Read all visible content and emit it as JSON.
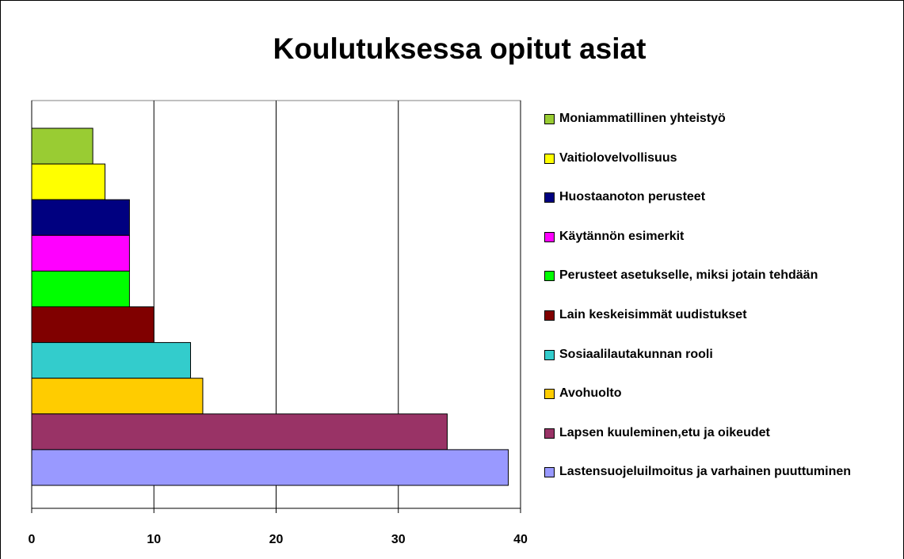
{
  "chart_data": {
    "type": "bar",
    "orientation": "horizontal",
    "title": "Koulutuksessa opitut asiat",
    "series": [
      {
        "name": "Moniammatillinen yhteistyö",
        "color": "#99cc33",
        "values": [
          5
        ]
      },
      {
        "name": "Vaitiolovelvollisuus",
        "color": "#ffff00",
        "values": [
          6
        ]
      },
      {
        "name": "Huostaanoton perusteet",
        "color": "#000080",
        "values": [
          8
        ]
      },
      {
        "name": "Käytännön esimerkit",
        "color": "#ff00ff",
        "values": [
          8
        ]
      },
      {
        "name": "Perusteet asetukselle, miksi jotain tehdään",
        "color": "#00ff00",
        "values": [
          8
        ]
      },
      {
        "name": "Lain keskeisimmät uudistukset",
        "color": "#800000",
        "values": [
          10
        ]
      },
      {
        "name": "Sosiaalilautakunnan rooli",
        "color": "#33cccc",
        "values": [
          13
        ]
      },
      {
        "name": "Avohuolto",
        "color": "#ffcc00",
        "values": [
          14
        ]
      },
      {
        "name": "Lapsen kuuleminen,etu ja oikeudet",
        "color": "#993366",
        "values": [
          34
        ]
      },
      {
        "name": "Lastensuojeluilmoitus ja varhainen puuttuminen",
        "color": "#9999ff",
        "values": [
          39
        ]
      }
    ],
    "xlim": [
      0,
      40
    ],
    "xticks": [
      0,
      10,
      20,
      30,
      40
    ],
    "grid": true,
    "legend": "right"
  }
}
